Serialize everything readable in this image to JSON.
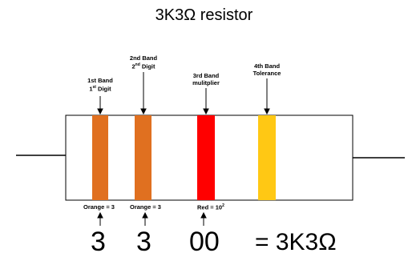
{
  "title": "3K3Ω resistor",
  "bands": [
    {
      "heading_line1": "1st Band",
      "heading_line2_base": "1",
      "heading_line2_sup": "st",
      "heading_line2_tail": " Digit",
      "color": "#e07020",
      "value_label": "Orange = 3",
      "value_sup": "",
      "digit": "3"
    },
    {
      "heading_line1": "2nd Band",
      "heading_line2_base": "2",
      "heading_line2_sup": "nd",
      "heading_line2_tail": " Digit",
      "color": "#e07020",
      "value_label": "Orange = 3",
      "value_sup": "",
      "digit": "3"
    },
    {
      "heading_line1": "3rd Band",
      "heading_line2_base": "mulitplier",
      "heading_line2_sup": "",
      "heading_line2_tail": "",
      "color": "#ff0000",
      "value_label": "Red = 10",
      "value_sup": "2",
      "digit": "00"
    },
    {
      "heading_line1": "4th Band",
      "heading_line2_base": "Tolerance",
      "heading_line2_sup": "",
      "heading_line2_tail": "",
      "color": "#ffc814",
      "value_label": "",
      "value_sup": "",
      "digit": ""
    }
  ],
  "result": "= 3K3Ω"
}
